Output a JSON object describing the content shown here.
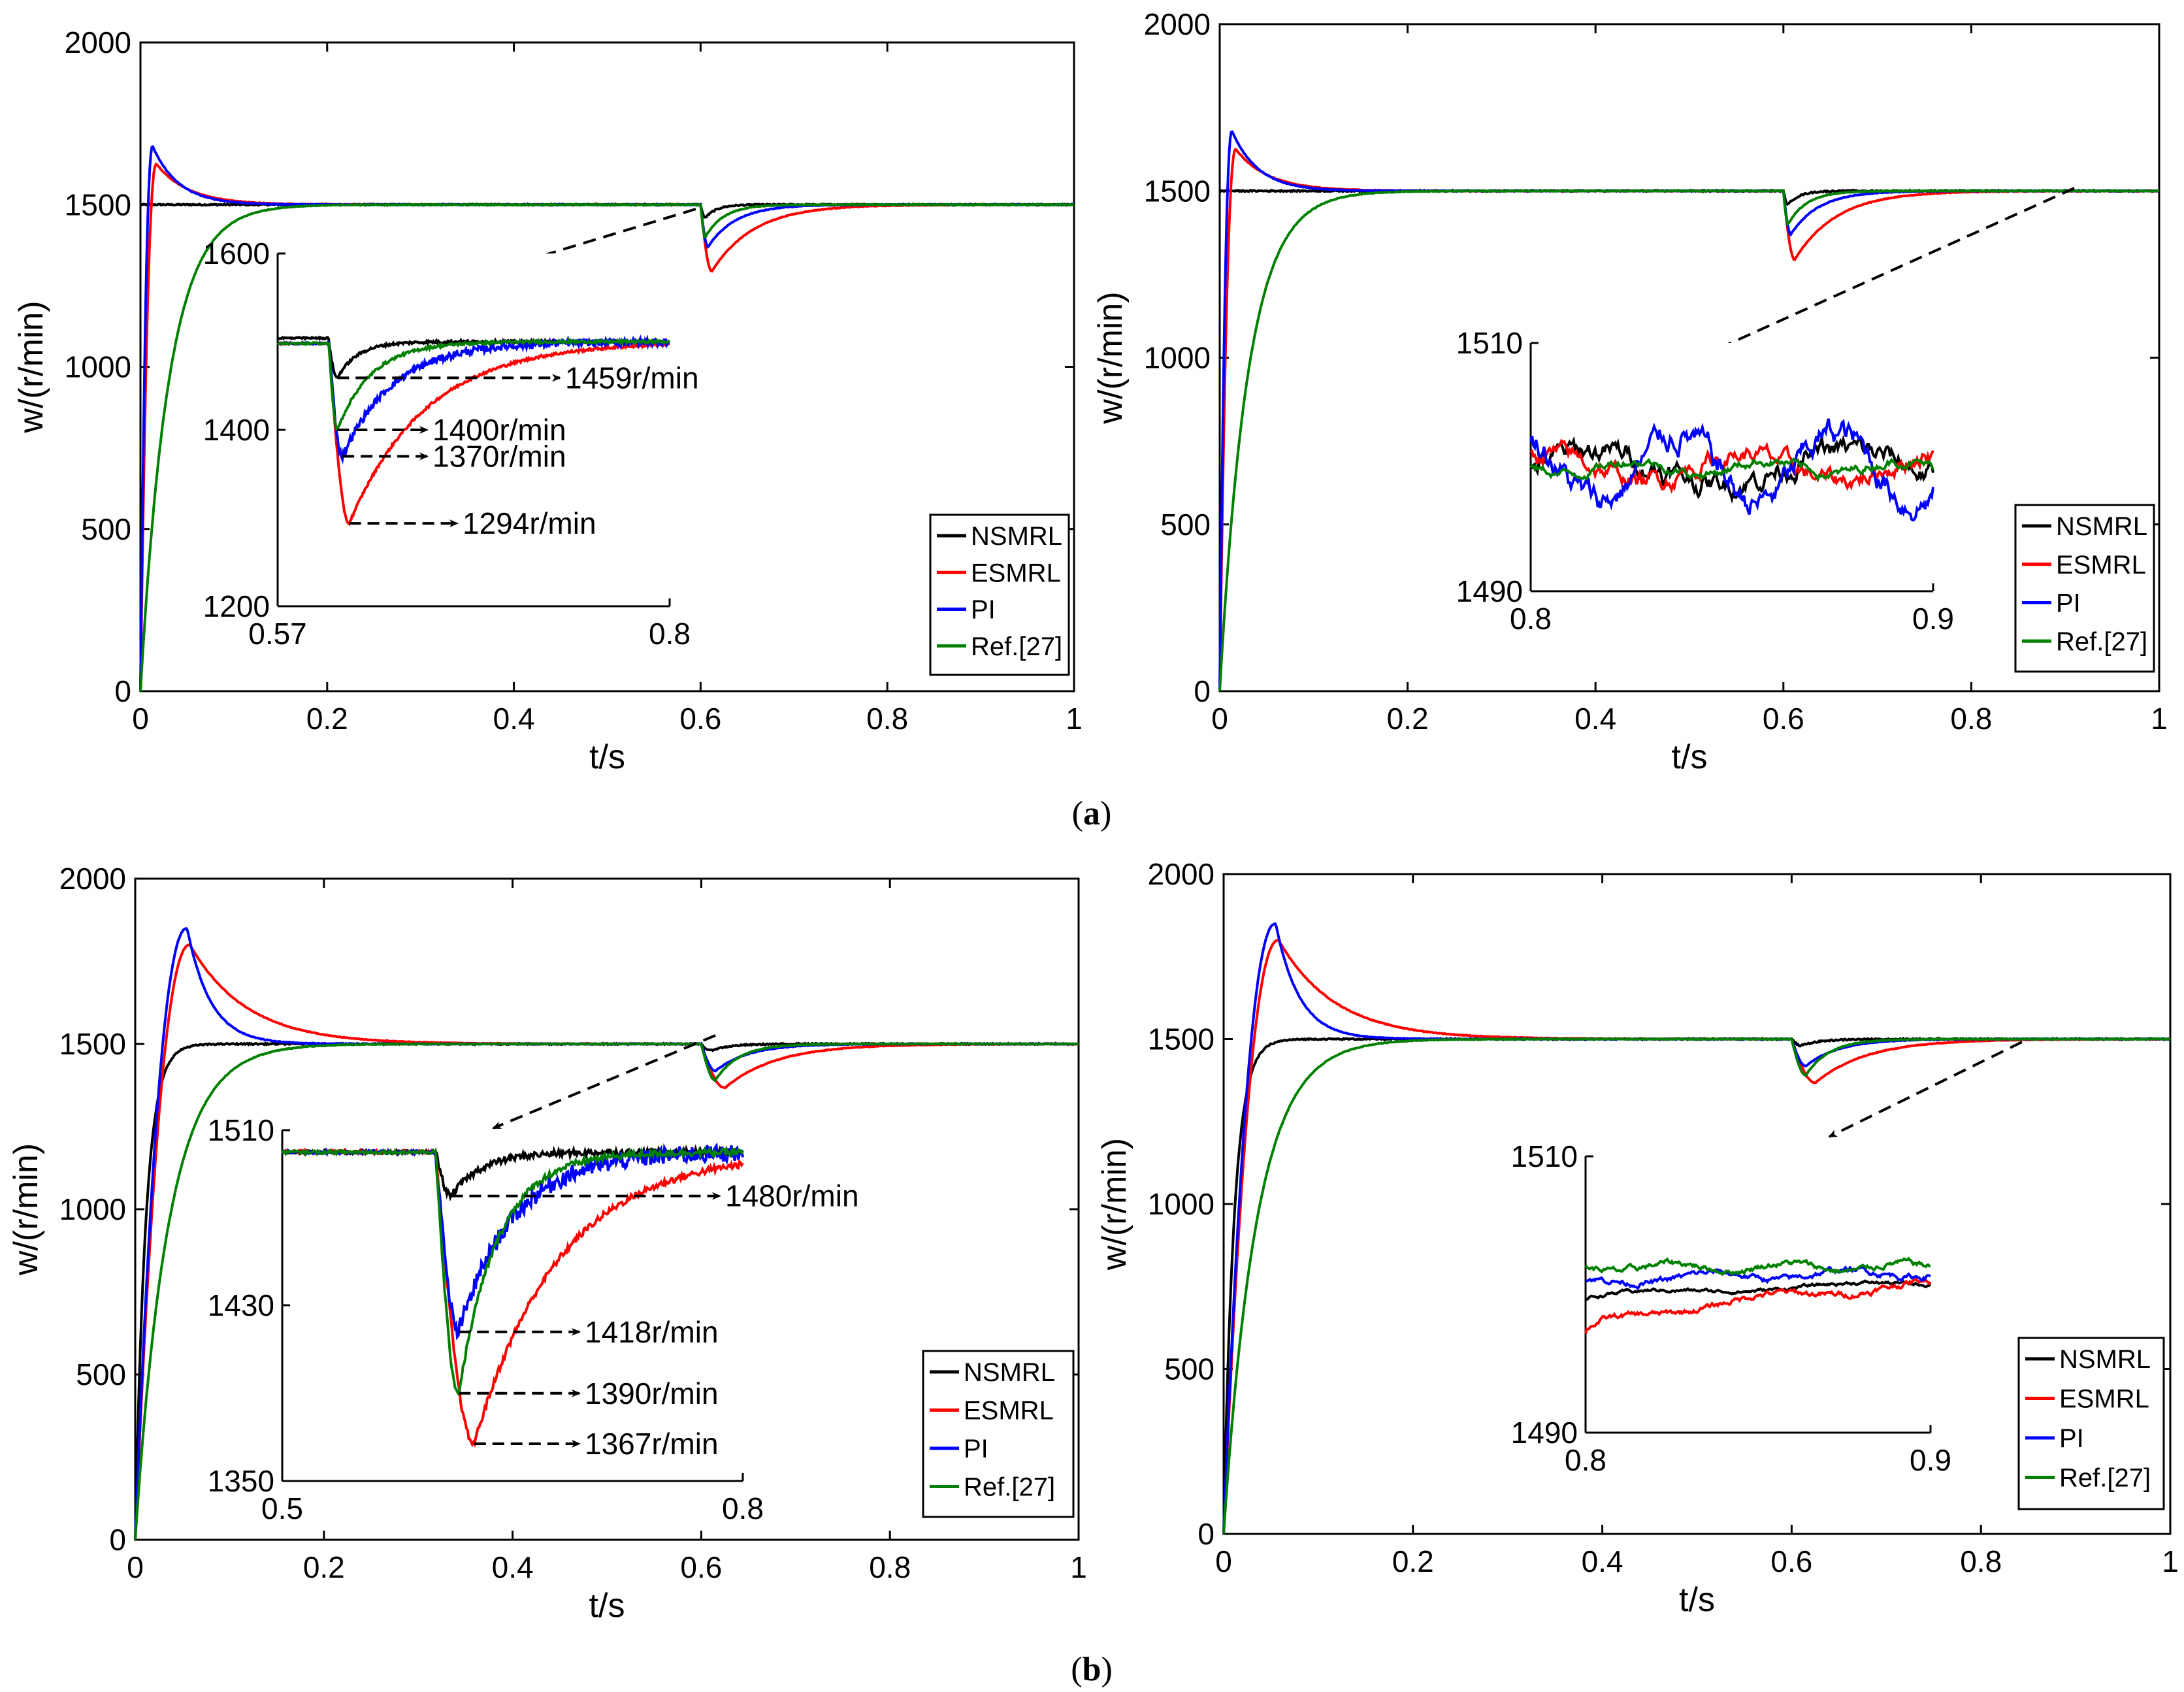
{
  "figure": {
    "captions": [
      "(a)",
      "(b)"
    ],
    "caption_labels": [
      "a",
      "b"
    ]
  },
  "colors": {
    "NSMRL": "#000000",
    "ESMRL": "#ff0000",
    "PI": "#0000ff",
    "Ref.[27]": "#008000",
    "arrow": "#000000"
  },
  "chart_data": [
    {
      "id": "a-left",
      "type": "line",
      "xlabel": "t/s",
      "ylabel": "w/(r/min)",
      "xlim": [
        0,
        1
      ],
      "ylim": [
        0,
        2000
      ],
      "xticks": [
        0,
        0.2,
        0.4,
        0.6,
        0.8,
        1
      ],
      "yticks": [
        0,
        500,
        1000,
        1500,
        2000
      ],
      "legend": [
        "NSMRL",
        "ESMRL",
        "PI",
        "Ref.[27]"
      ],
      "legend_position": "bottom-right",
      "series": {
        "NSMRL": {
          "start": 1500,
          "peak": 1500,
          "tau_rise": 0.0015,
          "settle": 0.01,
          "dip": 1459,
          "dip_t": 0.605,
          "rec": 0.012
        },
        "ESMRL": {
          "start": 0,
          "peak": 1625,
          "tpk": 0.017,
          "settle": 0.035,
          "dip": 1294,
          "dip_t": 0.612,
          "rec": 0.045
        },
        "PI": {
          "start": 0,
          "peak": 1680,
          "tpk": 0.013,
          "settle": 0.028,
          "dip": 1370,
          "dip_t": 0.608,
          "rec": 0.03
        },
        "Ref.[27]": {
          "start": 0,
          "peak": 1500,
          "tau_rise": 0.03,
          "dip": 1400,
          "dip_t": 0.605,
          "rec": 0.02
        }
      },
      "inset": {
        "xlim": [
          0.57,
          0.8
        ],
        "ylim": [
          1200,
          1600
        ],
        "xticks": [
          "0.57",
          "0.8"
        ],
        "yticks": [
          "1200",
          "1400",
          "1600"
        ],
        "annotations": [
          "1459r/min",
          "1400r/min",
          "1370r/min",
          "1294r/min"
        ]
      }
    },
    {
      "id": "a-right",
      "type": "line",
      "xlabel": "t/s",
      "ylabel": "w/(r/min)",
      "xlim": [
        0,
        1
      ],
      "ylim": [
        0,
        2000
      ],
      "xticks": [
        0,
        0.2,
        0.4,
        0.6,
        0.8,
        1
      ],
      "yticks": [
        0,
        500,
        1000,
        1500,
        2000
      ],
      "legend": [
        "NSMRL",
        "ESMRL",
        "PI",
        "Ref.[27]"
      ],
      "legend_position": "bottom-right",
      "series": {
        "NSMRL": {
          "start": 1500,
          "peak": 1500,
          "tau_rise": 0.0015,
          "dip": 1459,
          "dip_t": 0.605,
          "rec": 0.012
        },
        "ESMRL": {
          "start": 0,
          "peak": 1625,
          "tpk": 0.017,
          "settle": 0.035,
          "dip": 1294,
          "dip_t": 0.612,
          "rec": 0.045
        },
        "PI": {
          "start": 0,
          "peak": 1680,
          "tpk": 0.013,
          "settle": 0.028,
          "dip": 1370,
          "dip_t": 0.608,
          "rec": 0.03
        },
        "Ref.[27]": {
          "start": 0,
          "peak": 1500,
          "tau_rise": 0.03,
          "dip": 1400,
          "dip_t": 0.605,
          "rec": 0.02
        }
      },
      "inset": {
        "xlim": [
          0.8,
          0.9
        ],
        "ylim": [
          1490,
          1510
        ],
        "xticks": [
          "0.8",
          "0.9"
        ],
        "yticks": [
          "1490",
          "1510"
        ],
        "ripple_amplitude": {
          "NSMRL": 2.2,
          "ESMRL": 1.8,
          "PI": 2.8,
          "Ref.[27]": 0.9
        }
      }
    },
    {
      "id": "b-left",
      "type": "line",
      "xlabel": "t/s",
      "ylabel": "w/(r/min)",
      "xlim": [
        0,
        1
      ],
      "ylim": [
        0,
        2000
      ],
      "xticks": [
        0,
        0.2,
        0.4,
        0.6,
        0.8,
        1
      ],
      "yticks": [
        0,
        500,
        1000,
        1500,
        2000
      ],
      "legend": [
        "NSMRL",
        "ESMRL",
        "PI",
        "Ref.[27]"
      ],
      "legend_position": "bottom-right",
      "series": {
        "NSMRL": {
          "start": 0,
          "peak": 1500,
          "tau_rise": 0.011,
          "dip": 1480,
          "dip_t": 0.61,
          "rec": 0.02
        },
        "ESMRL": {
          "start": 0,
          "peak": 1800,
          "tpk": 0.058,
          "settle": 0.06,
          "dip": 1367,
          "dip_t": 0.625,
          "rec": 0.055
        },
        "PI": {
          "start": 0,
          "peak": 1850,
          "tpk": 0.055,
          "settle": 0.025,
          "dip": 1418,
          "dip_t": 0.615,
          "rec": 0.035
        },
        "Ref.[27]": {
          "start": 0,
          "peak": 1500,
          "tau_rise": 0.035,
          "dip": 1390,
          "dip_t": 0.615,
          "rec": 0.025
        }
      },
      "inset": {
        "xlim": [
          0.5,
          0.8
        ],
        "ylim": [
          1350,
          1510
        ],
        "xticks": [
          "0.5",
          "0.8"
        ],
        "yticks": [
          "1350",
          "1430",
          "1510"
        ],
        "annotations": [
          "1480r/min",
          "1418r/min",
          "1390r/min",
          "1367r/min"
        ]
      }
    },
    {
      "id": "b-right",
      "type": "line",
      "xlabel": "t/s",
      "ylabel": "w/(r/min)",
      "xlim": [
        0,
        1
      ],
      "ylim": [
        0,
        2000
      ],
      "xticks": [
        0,
        0.2,
        0.4,
        0.6,
        0.8,
        1
      ],
      "yticks": [
        0,
        500,
        1000,
        1500,
        2000
      ],
      "legend": [
        "NSMRL",
        "ESMRL",
        "PI",
        "Ref.[27]"
      ],
      "legend_position": "bottom-right",
      "series": {
        "NSMRL": {
          "start": 0,
          "peak": 1500,
          "tau_rise": 0.011,
          "dip": 1480,
          "dip_t": 0.61,
          "rec": 0.02
        },
        "ESMRL": {
          "start": 0,
          "peak": 1800,
          "tpk": 0.058,
          "settle": 0.06,
          "dip": 1367,
          "dip_t": 0.625,
          "rec": 0.055
        },
        "PI": {
          "start": 0,
          "peak": 1850,
          "tpk": 0.055,
          "settle": 0.025,
          "dip": 1418,
          "dip_t": 0.615,
          "rec": 0.035
        },
        "Ref.[27]": {
          "start": 0,
          "peak": 1500,
          "tau_rise": 0.035,
          "dip": 1390,
          "dip_t": 0.615,
          "rec": 0.025
        }
      },
      "inset": {
        "xlim": [
          0.8,
          0.9
        ],
        "ylim": [
          1490,
          1510
        ],
        "xticks": [
          "0.8",
          "0.9"
        ],
        "yticks": [
          "1490",
          "1510"
        ],
        "ripple_amplitude": {
          "NSMRL": 0.3,
          "ESMRL": 0.5,
          "PI": 0.5,
          "Ref.[27]": 0.5
        },
        "ripple_levels": {
          "NSMRL": [
            1499.6,
            1500.8
          ],
          "ESMRL": [
            1497.0,
            1500.8
          ],
          "PI": [
            1500.8,
            1501.6
          ],
          "Ref.[27]": [
            1502.0,
            1502.0
          ]
        }
      }
    }
  ]
}
